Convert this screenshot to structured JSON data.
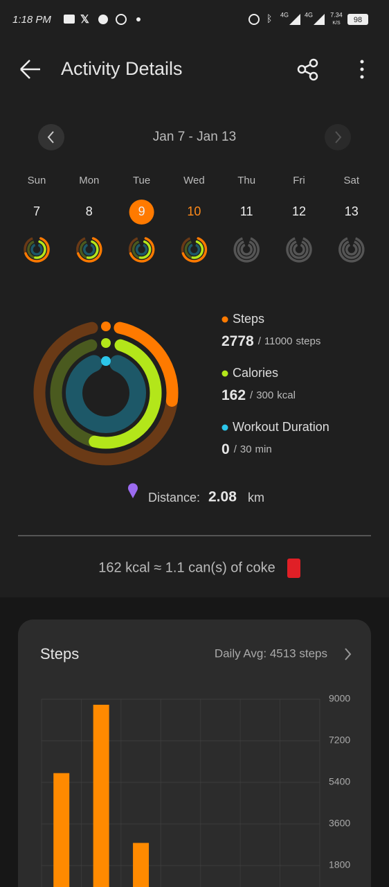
{
  "status_bar": {
    "time": "1:18 PM",
    "network": [
      "4G",
      "4G"
    ],
    "speed": "7.34",
    "speed_unit": "K/S",
    "battery": 98
  },
  "header": {
    "title": "Activity Details"
  },
  "week": {
    "range": "Jan 7 - Jan 13",
    "selected": 2,
    "today": 3,
    "days": [
      {
        "name": "Sun",
        "date": 7
      },
      {
        "name": "Mon",
        "date": 8
      },
      {
        "name": "Tue",
        "date": 9
      },
      {
        "name": "Wed",
        "date": 10
      },
      {
        "name": "Thu",
        "date": 11
      },
      {
        "name": "Fri",
        "date": 12
      },
      {
        "name": "Sat",
        "date": 13
      }
    ]
  },
  "stats": [
    {
      "label": "Steps",
      "value": 2778,
      "separator": "/",
      "goal": 11000,
      "unit": "steps",
      "color": "#ff7a00",
      "dim": "#6a3a16"
    },
    {
      "label": "Calories",
      "value": 162,
      "separator": "/",
      "goal": 300,
      "unit": "kcal",
      "color": "#b3e61a",
      "dim": "#4a5a1f"
    },
    {
      "label": "Workout Duration",
      "value": 0,
      "separator": "/",
      "goal": 30,
      "unit": "min",
      "color": "#2cc6ea",
      "dim": "#1d5868"
    }
  ],
  "distance": {
    "label": "Distance:",
    "value": 2.08,
    "unit": "km"
  },
  "equivalence": "162 kcal ≈ 1.1 can(s) of coke",
  "steps_card": {
    "title": "Steps",
    "daily_avg": "Daily Avg: 4513 steps",
    "chart_data": {
      "type": "bar",
      "categories": [
        null,
        null,
        null,
        null,
        null,
        null,
        null
      ],
      "values": [
        5800,
        8760,
        2778,
        null,
        null,
        null,
        null
      ],
      "color": "#ff8a00",
      "ylim": [
        0,
        9000
      ],
      "yticks": [
        1800,
        3600,
        5400,
        7200,
        9000
      ],
      "grid": true
    }
  }
}
